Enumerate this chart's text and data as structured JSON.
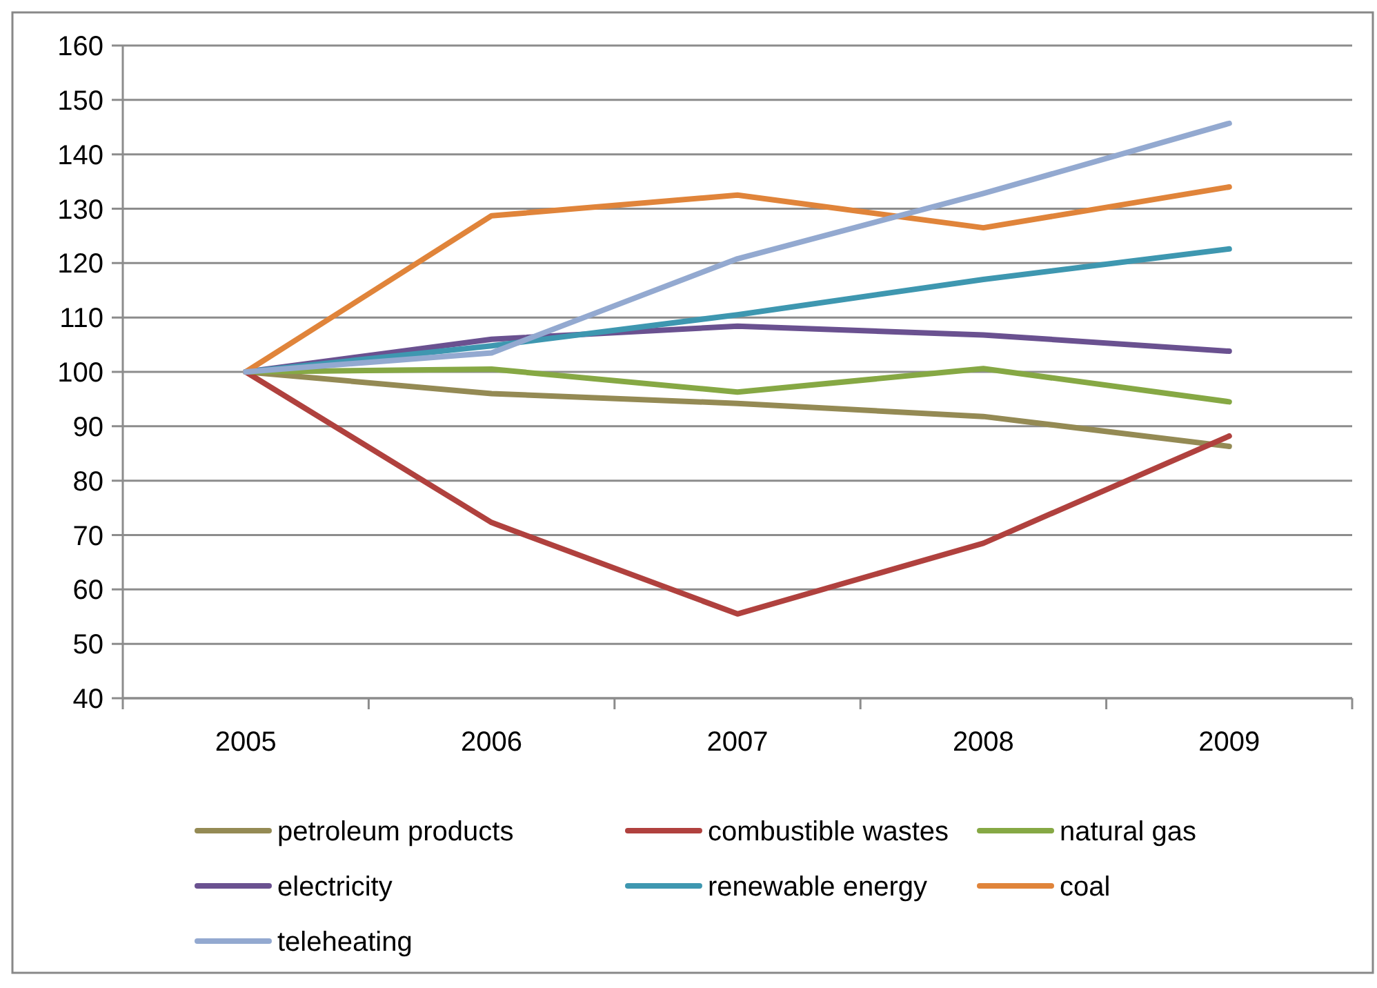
{
  "chart_data": {
    "type": "line",
    "categories": [
      "2005",
      "2006",
      "2007",
      "2008",
      "2009"
    ],
    "ylim": [
      40,
      160
    ],
    "yticks": [
      40,
      50,
      60,
      70,
      80,
      90,
      100,
      110,
      120,
      130,
      140,
      150,
      160
    ],
    "grid": "y",
    "legend": "bottom",
    "marker": "none",
    "line_style": "solid",
    "series": [
      {
        "name": "petroleum products",
        "color": "#948a54",
        "values": [
          100,
          96,
          94.2,
          91.8,
          86.3
        ]
      },
      {
        "name": "combustible wastes",
        "color": "#b0413e",
        "values": [
          100,
          72.3,
          55.5,
          68.5,
          88.2
        ]
      },
      {
        "name": "natural gas",
        "color": "#86a844",
        "values": [
          100,
          100.5,
          96.3,
          100.6,
          94.5
        ]
      },
      {
        "name": "electricity",
        "color": "#6a5190",
        "values": [
          100,
          106,
          108.4,
          106.8,
          103.8
        ]
      },
      {
        "name": "renewable energy",
        "color": "#3e97b0",
        "values": [
          100,
          104.8,
          110.5,
          117,
          122.6
        ]
      },
      {
        "name": "coal",
        "color": "#e0843a",
        "values": [
          100,
          128.7,
          132.5,
          126.5,
          134
        ]
      },
      {
        "name": "teleheating",
        "color": "#93a9d0",
        "values": [
          100,
          103.5,
          120.8,
          132.8,
          145.7
        ]
      }
    ]
  }
}
